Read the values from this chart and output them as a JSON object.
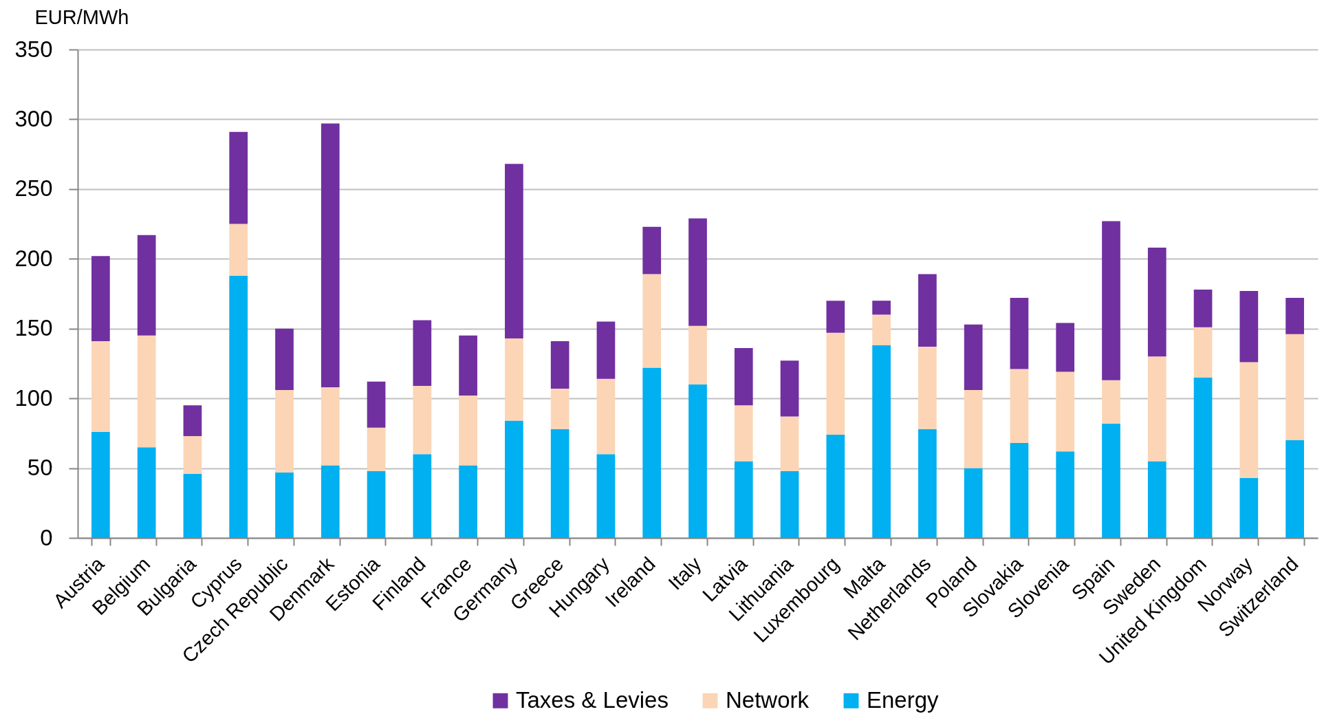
{
  "chart_data": {
    "type": "bar",
    "stacked": true,
    "ylabel": "EUR/MWh",
    "categories": [
      "Austria",
      "Belgium",
      "Bulgaria",
      "Cyprus",
      "Czech Republic",
      "Denmark",
      "Estonia",
      "Finland",
      "France",
      "Germany",
      "Greece",
      "Hungary",
      "Ireland",
      "Italy",
      "Latvia",
      "Lithuania",
      "Luxembourg",
      "Malta",
      "Netherlands",
      "Poland",
      "Slovakia",
      "Slovenia",
      "Spain",
      "Sweden",
      "United Kingdom",
      "Norway",
      "Switzerland"
    ],
    "series": [
      {
        "name": "Energy",
        "color": "#00b0f0",
        "values": [
          76,
          65,
          46,
          188,
          47,
          52,
          48,
          60,
          52,
          84,
          78,
          60,
          122,
          110,
          55,
          48,
          74,
          138,
          78,
          50,
          68,
          62,
          82,
          55,
          115,
          43,
          70
        ]
      },
      {
        "name": "Network",
        "color": "#fbd5b5",
        "values": [
          65,
          80,
          27,
          37,
          59,
          56,
          31,
          49,
          50,
          59,
          29,
          54,
          67,
          42,
          40,
          39,
          73,
          22,
          59,
          56,
          53,
          57,
          31,
          75,
          36,
          83,
          76
        ]
      },
      {
        "name": "Taxes & Levies",
        "color": "#7030a0",
        "values": [
          61,
          72,
          22,
          66,
          44,
          189,
          33,
          47,
          43,
          125,
          34,
          41,
          34,
          77,
          41,
          40,
          23,
          10,
          52,
          47,
          51,
          35,
          114,
          78,
          27,
          51,
          26
        ]
      }
    ],
    "ylim": [
      0,
      350
    ],
    "yticks": [
      0,
      50,
      100,
      150,
      200,
      250,
      300,
      350
    ],
    "grid": "y",
    "legend": "bottom"
  }
}
